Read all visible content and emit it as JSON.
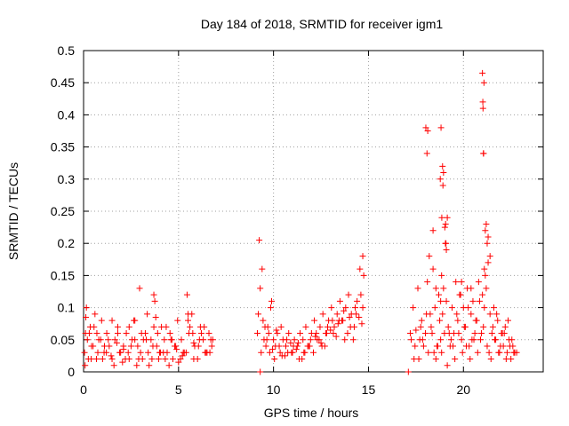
{
  "chart_data": {
    "type": "scatter",
    "title": "Day 184 of 2018, SRMTID for receiver igm1",
    "xlabel": "GPS time / hours",
    "ylabel": "SRMTID / TECUs",
    "xlim": [
      0,
      24.2
    ],
    "ylim": [
      0,
      0.5
    ],
    "xticks": [
      "0",
      "5",
      "10",
      "15",
      "20"
    ],
    "xtick_values": [
      0,
      5,
      10,
      15,
      20
    ],
    "yticks": [
      "0",
      "0.05",
      "0.1",
      "0.15",
      "0.2",
      "0.25",
      "0.3",
      "0.35",
      "0.4",
      "0.45",
      "0.5"
    ],
    "ytick_values": [
      0,
      0.05,
      0.1,
      0.15,
      0.2,
      0.25,
      0.3,
      0.35,
      0.4,
      0.45,
      0.5
    ],
    "grid": true,
    "marker": "+",
    "color": "#ff0000",
    "series": [
      {
        "name": "igm1",
        "x": [
          0.05,
          0.12,
          0.2,
          0.3,
          0.42,
          0.55,
          0.68,
          0.8,
          0.95,
          1.08,
          1.22,
          1.35,
          1.5,
          1.65,
          1.8,
          1.95,
          2.1,
          2.25,
          2.4,
          2.55,
          2.7,
          2.85,
          2.95,
          3.1,
          3.25,
          3.4,
          3.55,
          3.7,
          3.85,
          3.95,
          4.1,
          4.25,
          4.4,
          4.55,
          4.7,
          4.85,
          5.0,
          5.15,
          5.3,
          5.45,
          5.55,
          5.7,
          5.85,
          6.0,
          6.15,
          6.3,
          6.45,
          6.6,
          6.75,
          0.1,
          0.25,
          0.5,
          0.75,
          1.0,
          1.3,
          1.6,
          1.9,
          2.2,
          2.5,
          2.8,
          3.0,
          3.3,
          3.6,
          3.75,
          3.9,
          4.2,
          4.5,
          4.8,
          5.1,
          5.4,
          5.6,
          5.8,
          6.1,
          6.4,
          6.7,
          0.15,
          0.35,
          0.6,
          0.9,
          1.2,
          1.5,
          1.8,
          2.1,
          2.4,
          2.7,
          3.05,
          3.35,
          3.65,
          3.8,
          4.05,
          4.35,
          4.65,
          4.95,
          5.25,
          5.5,
          5.75,
          6.05,
          6.35,
          6.65,
          0.08,
          0.4,
          0.7,
          1.1,
          1.45,
          1.75,
          2.05,
          2.35,
          2.65,
          2.9,
          3.15,
          3.45,
          3.7,
          4.0,
          4.3,
          4.6,
          4.9,
          5.2,
          5.5,
          5.8,
          6.2,
          6.5,
          6.8,
          9.15,
          9.25,
          9.3,
          9.4,
          9.5,
          9.6,
          9.7,
          9.8,
          9.9,
          10.0,
          10.1,
          10.2,
          10.35,
          10.5,
          10.65,
          10.8,
          10.95,
          11.1,
          11.25,
          11.4,
          11.55,
          11.7,
          11.85,
          12.0,
          12.15,
          12.3,
          12.45,
          12.6,
          12.75,
          12.9,
          13.05,
          13.2,
          13.35,
          13.5,
          13.65,
          13.8,
          13.95,
          14.1,
          14.25,
          14.4,
          14.55,
          14.7,
          9.2,
          9.45,
          9.75,
          10.05,
          10.4,
          10.75,
          11.05,
          11.35,
          11.65,
          11.95,
          12.25,
          12.55,
          12.85,
          13.15,
          13.45,
          13.75,
          14.05,
          14.35,
          14.6,
          14.75,
          9.35,
          9.65,
          9.95,
          10.3,
          10.6,
          10.9,
          11.2,
          11.5,
          11.8,
          12.1,
          12.4,
          12.7,
          13.0,
          13.3,
          13.6,
          13.9,
          14.2,
          14.5,
          14.7,
          9.55,
          9.85,
          10.15,
          10.45,
          10.7,
          11.0,
          11.3,
          11.6,
          11.9,
          12.2,
          12.5,
          12.8,
          13.1,
          13.4,
          13.7,
          14.0,
          14.3,
          14.65,
          17.2,
          17.35,
          17.5,
          17.6,
          17.7,
          17.8,
          17.9,
          18.0,
          18.05,
          18.1,
          18.2,
          18.3,
          18.4,
          18.5,
          18.6,
          18.7,
          18.75,
          18.8,
          18.85,
          18.9,
          18.95,
          19.0,
          19.05,
          19.1,
          19.2,
          19.3,
          19.4,
          19.5,
          19.6,
          19.7,
          19.8,
          19.9,
          20.0,
          20.1,
          20.2,
          20.3,
          20.4,
          20.5,
          20.6,
          20.7,
          20.8,
          20.9,
          21.0,
          21.05,
          21.1,
          21.15,
          21.2,
          21.3,
          21.4,
          21.5,
          21.6,
          21.7,
          21.8,
          21.9,
          22.0,
          22.1,
          22.2,
          22.3,
          22.4,
          22.5,
          22.6,
          22.7,
          17.25,
          17.45,
          17.65,
          17.85,
          18.15,
          18.35,
          18.55,
          18.65,
          18.85,
          19.15,
          19.35,
          19.55,
          19.75,
          19.95,
          20.15,
          20.35,
          20.55,
          20.75,
          20.95,
          21.25,
          21.45,
          21.65,
          21.85,
          22.05,
          22.25,
          22.45,
          22.65,
          17.4,
          17.75,
          18.25,
          18.45,
          18.8,
          19.25,
          19.45,
          19.65,
          19.85,
          20.05,
          20.25,
          20.45,
          20.65,
          20.85,
          21.35,
          21.55,
          21.75,
          21.95,
          22.15,
          22.35,
          22.55,
          18.02,
          18.08,
          18.12,
          18.4,
          18.78,
          18.82,
          18.86,
          18.9,
          18.92,
          18.95,
          19.02,
          19.06,
          19.08,
          19.1,
          19.15,
          21.0,
          21.02,
          21.05,
          21.08,
          21.03,
          21.06,
          21.1,
          21.2,
          21.3,
          21.4,
          18.55,
          19.9,
          20.4,
          21.25,
          21.15,
          17.1,
          9.3,
          22.8
        ],
        "y": [
          0.03,
          0.085,
          0.05,
          0.06,
          0.04,
          0.07,
          0.02,
          0.05,
          0.08,
          0.03,
          0.06,
          0.04,
          0.02,
          0.05,
          0.07,
          0.03,
          0.04,
          0.06,
          0.02,
          0.05,
          0.08,
          0.04,
          0.13,
          0.02,
          0.06,
          0.03,
          0.05,
          0.12,
          0.04,
          0.02,
          0.07,
          0.05,
          0.03,
          0.06,
          0.02,
          0.04,
          0.015,
          0.05,
          0.03,
          0.12,
          0.06,
          0.09,
          0.04,
          0.02,
          0.07,
          0.05,
          0.03,
          0.06,
          0.04,
          0.06,
          0.02,
          0.04,
          0.03,
          0.02,
          0.05,
          0.01,
          0.03,
          0.02,
          0.04,
          0.01,
          0.03,
          0.05,
          0.02,
          0.11,
          0.06,
          0.03,
          0.01,
          0.04,
          0.02,
          0.03,
          0.07,
          0.02,
          0.05,
          0.03,
          0.05,
          0.1,
          0.07,
          0.09,
          0.05,
          0.03,
          0.08,
          0.06,
          0.035,
          0.07,
          0.05,
          0.06,
          0.09,
          0.04,
          0.085,
          0.03,
          0.07,
          0.05,
          0.08,
          0.03,
          0.09,
          0.06,
          0.04,
          0.07,
          0.03,
          0.01,
          0.02,
          0.06,
          0.04,
          0.025,
          0.045,
          0.015,
          0.03,
          0.08,
          0.02,
          0.05,
          0.01,
          0.07,
          0.03,
          0.02,
          0.05,
          0.035,
          0.025,
          0.08,
          0.045,
          0.06,
          0.03,
          0.05,
          0.06,
          0.205,
          0.13,
          0.16,
          0.05,
          0.04,
          0.07,
          0.03,
          0.11,
          0.05,
          0.04,
          0.06,
          0.03,
          0.05,
          0.04,
          0.06,
          0.03,
          0.05,
          0.04,
          0.06,
          0.05,
          0.07,
          0.04,
          0.06,
          0.08,
          0.05,
          0.07,
          0.09,
          0.06,
          0.08,
          0.1,
          0.07,
          0.09,
          0.11,
          0.08,
          0.1,
          0.12,
          0.09,
          0.07,
          0.11,
          0.16,
          0.18,
          0.09,
          0.08,
          0.06,
          0.02,
          0.07,
          0.03,
          0.04,
          0.02,
          0.03,
          0.05,
          0.06,
          0.04,
          0.07,
          0.06,
          0.08,
          0.05,
          0.07,
          0.09,
          0.12,
          0.15,
          0.03,
          0.05,
          0.035,
          0.04,
          0.025,
          0.045,
          0.035,
          0.02,
          0.04,
          0.03,
          0.05,
          0.04,
          0.065,
          0.055,
          0.08,
          0.06,
          0.05,
          0.085,
          0.1,
          0.07,
          0.1,
          0.065,
          0.025,
          0.05,
          0.03,
          0.045,
          0.03,
          0.04,
          0.055,
          0.045,
          0.06,
          0.08,
          0.075,
          0.095,
          0.085,
          0.1,
          0.075,
          0.06,
          0.1,
          0.065,
          0.13,
          0.05,
          0.08,
          0.04,
          0.06,
          0.09,
          0.14,
          0.18,
          0.07,
          0.16,
          0.1,
          0.04,
          0.12,
          0.08,
          0.05,
          0.15,
          0.09,
          0.13,
          0.06,
          0.2,
          0.11,
          0.07,
          0.04,
          0.1,
          0.06,
          0.14,
          0.08,
          0.12,
          0.05,
          0.1,
          0.07,
          0.13,
          0.04,
          0.09,
          0.11,
          0.06,
          0.08,
          0.14,
          0.05,
          0.12,
          0.07,
          0.1,
          0.15,
          0.13,
          0.17,
          0.09,
          0.06,
          0.1,
          0.05,
          0.08,
          0.03,
          0.06,
          0.04,
          0.07,
          0.03,
          0.05,
          0.02,
          0.04,
          0.03,
          0.05,
          0.04,
          0.02,
          0.05,
          0.03,
          0.06,
          0.02,
          0.04,
          0.03,
          0.01,
          0.05,
          0.02,
          0.06,
          0.03,
          0.04,
          0.02,
          0.05,
          0.03,
          0.06,
          0.04,
          0.02,
          0.05,
          0.03,
          0.06,
          0.02,
          0.04,
          0.03,
          0.02,
          0.07,
          0.09,
          0.03,
          0.11,
          0.06,
          0.04,
          0.09,
          0.12,
          0.07,
          0.1,
          0.05,
          0.08,
          0.11,
          0.03,
          0.07,
          0.09,
          0.04,
          0.06,
          0.08,
          0.05,
          0.38,
          0.34,
          0.375,
          0.22,
          0.3,
          0.38,
          0.24,
          0.32,
          0.29,
          0.31,
          0.225,
          0.23,
          0.2,
          0.19,
          0.24,
          0.465,
          0.42,
          0.34,
          0.45,
          0.41,
          0.34,
          0.16,
          0.23,
          0.21,
          0.18,
          0.13,
          0.14,
          0.13,
          0.2,
          0.22,
          0.0,
          0.0,
          0.03
        ]
      }
    ]
  }
}
